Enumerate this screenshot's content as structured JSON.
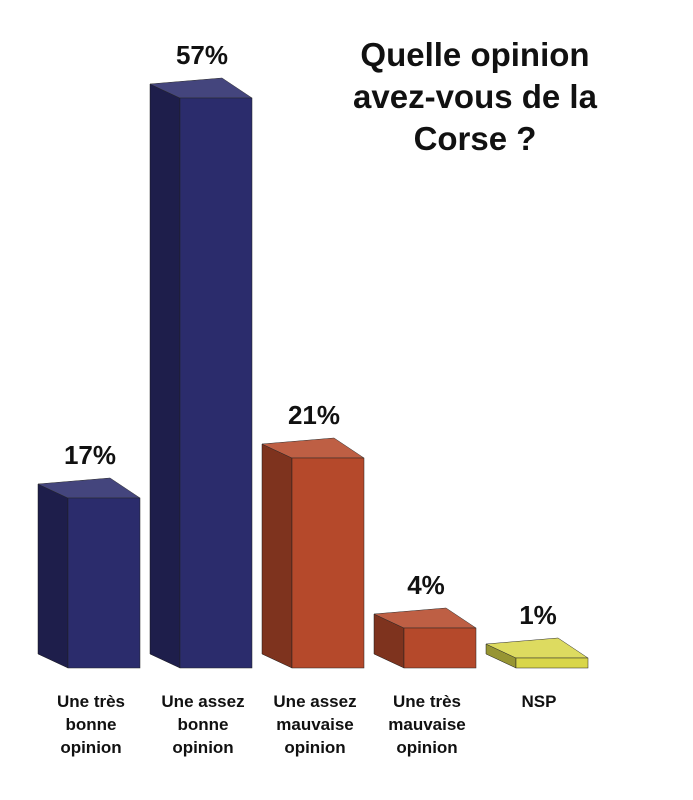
{
  "chart_data": {
    "type": "bar3d",
    "title": "Quelle opinion avez-vous de la Corse ?",
    "categories": [
      "Une très bonne opinion",
      "Une assez bonne opinion",
      "Une assez mauvaise opinion",
      "Une très mauvaise opinion",
      "NSP"
    ],
    "values": [
      17,
      57,
      21,
      4,
      1
    ],
    "value_labels": [
      "17%",
      "57%",
      "21%",
      "4%",
      "1%"
    ],
    "colors": [
      "#2b2c6c",
      "#2b2c6c",
      "#b5492b",
      "#b5492b",
      "#d9d64a"
    ]
  }
}
